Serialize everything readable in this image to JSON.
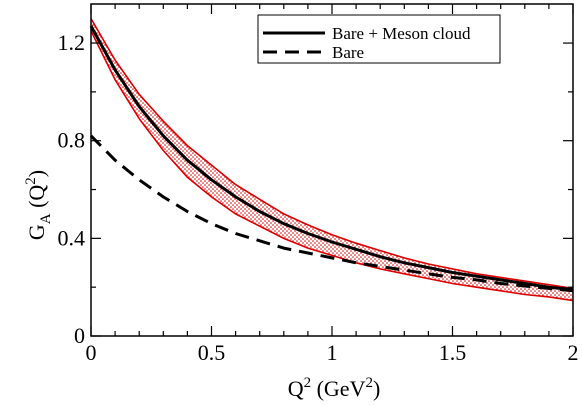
{
  "chart_data": {
    "type": "line",
    "title": "",
    "xlabel": {
      "base": "Q",
      "sup": "2",
      "unit_open": " (GeV",
      "unit_sup": "2",
      "unit_close": ")"
    },
    "ylabel": {
      "base": "G",
      "sub": "A",
      "open": " (Q",
      "sup": "2",
      "close": ")"
    },
    "xlim": [
      0,
      2
    ],
    "ylim": [
      0,
      1.36
    ],
    "x_ticks": [
      0,
      0.5,
      1,
      1.5,
      2
    ],
    "x_tick_labels": [
      "0",
      "0.5",
      "1",
      "1.5",
      "2"
    ],
    "y_ticks": [
      0,
      0.4,
      0.8,
      1.2
    ],
    "y_tick_labels": [
      "0",
      "0.4",
      "0.8",
      "1.2"
    ],
    "grid": false,
    "legend_position": "top-right",
    "colors": {
      "band": "#dd0000",
      "line": "#000000"
    },
    "series": [
      {
        "name": "Bare + Meson cloud",
        "style": "solid",
        "x": [
          0,
          0.1,
          0.2,
          0.3,
          0.4,
          0.5,
          0.6,
          0.7,
          0.8,
          0.9,
          1.0,
          1.1,
          1.2,
          1.3,
          1.4,
          1.5,
          1.6,
          1.7,
          1.8,
          1.9,
          2.0
        ],
        "y": [
          1.27,
          1.09,
          0.94,
          0.82,
          0.72,
          0.64,
          0.57,
          0.51,
          0.46,
          0.42,
          0.385,
          0.355,
          0.325,
          0.3,
          0.28,
          0.26,
          0.245,
          0.23,
          0.215,
          0.2,
          0.19
        ]
      },
      {
        "name": "Bare",
        "style": "dashed",
        "x": [
          0,
          0.1,
          0.2,
          0.3,
          0.4,
          0.5,
          0.6,
          0.7,
          0.8,
          0.9,
          1.0,
          1.1,
          1.2,
          1.3,
          1.4,
          1.5,
          1.6,
          1.7,
          1.8,
          1.9,
          2.0
        ],
        "y": [
          0.82,
          0.72,
          0.64,
          0.57,
          0.51,
          0.46,
          0.42,
          0.39,
          0.36,
          0.34,
          0.32,
          0.3,
          0.285,
          0.27,
          0.255,
          0.24,
          0.23,
          0.215,
          0.205,
          0.195,
          0.185
        ]
      }
    ],
    "band": {
      "x": [
        0,
        0.1,
        0.2,
        0.3,
        0.4,
        0.5,
        0.6,
        0.7,
        0.8,
        0.9,
        1.0,
        1.1,
        1.2,
        1.3,
        1.4,
        1.5,
        1.6,
        1.7,
        1.8,
        1.9,
        2.0
      ],
      "upper": [
        1.3,
        1.13,
        0.99,
        0.88,
        0.78,
        0.7,
        0.62,
        0.56,
        0.5,
        0.455,
        0.415,
        0.38,
        0.35,
        0.32,
        0.295,
        0.275,
        0.255,
        0.24,
        0.225,
        0.21,
        0.195
      ],
      "lower": [
        1.25,
        1.05,
        0.89,
        0.76,
        0.65,
        0.57,
        0.5,
        0.45,
        0.4,
        0.36,
        0.33,
        0.3,
        0.275,
        0.255,
        0.235,
        0.215,
        0.2,
        0.185,
        0.17,
        0.16,
        0.145
      ]
    }
  }
}
